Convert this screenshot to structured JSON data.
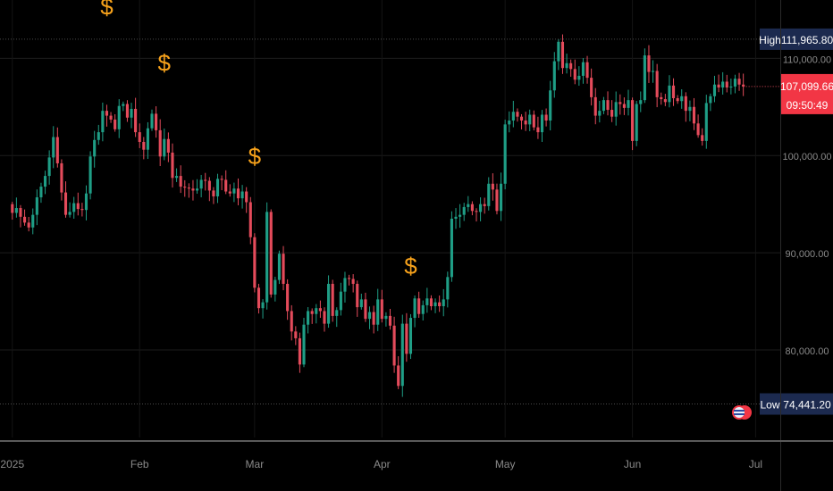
{
  "chart_data": {
    "type": "candlestick",
    "x_axis": {
      "ticks": [
        {
          "label": "2025",
          "day": 0
        },
        {
          "label": "Feb",
          "day": 31
        },
        {
          "label": "Mar",
          "day": 59
        },
        {
          "label": "Apr",
          "day": 90
        },
        {
          "label": "May",
          "day": 120
        },
        {
          "label": "Jun",
          "day": 151
        },
        {
          "label": "Jul",
          "day": 181
        }
      ],
      "range_days": [
        -3,
        187
      ]
    },
    "y_axis": {
      "ticks": [
        "80,000.00",
        "90,000.00",
        "100,000.00",
        "110,000.00"
      ],
      "tick_values": [
        80000,
        90000,
        100000,
        110000
      ],
      "range": [
        71000,
        116000
      ],
      "side": "right"
    },
    "markers": {
      "high": {
        "label": "High",
        "value_text": "111,965.80",
        "value": 111965.8
      },
      "low": {
        "label": "Low",
        "value_text": "74,441.20",
        "value": 74441.2
      },
      "current": {
        "value_text": "107,099.66",
        "countdown": "09:50:49",
        "value": 107099.66
      }
    },
    "dollar_signals": [
      {
        "day": 23,
        "price": 114500
      },
      {
        "day": 37,
        "price": 108700
      },
      {
        "day": 59,
        "price": 99100
      },
      {
        "day": 97,
        "price": 87800
      }
    ],
    "candles_open_close": [
      [
        95000,
        94100
      ],
      [
        94100,
        94600
      ],
      [
        94600,
        93700
      ],
      [
        93700,
        93100
      ],
      [
        93100,
        92600
      ],
      [
        92600,
        93900
      ],
      [
        93900,
        95700
      ],
      [
        95700,
        96800
      ],
      [
        96800,
        97900
      ],
      [
        97900,
        99800
      ],
      [
        99800,
        101900
      ],
      [
        101900,
        99200
      ],
      [
        99200,
        96200
      ],
      [
        96200,
        93900
      ],
      [
        93900,
        94200
      ],
      [
        94200,
        95100
      ],
      [
        95100,
        94500
      ],
      [
        94500,
        94400
      ],
      [
        94400,
        96100
      ],
      [
        96100,
        99900
      ],
      [
        99900,
        101600
      ],
      [
        101600,
        102400
      ],
      [
        102400,
        104600
      ],
      [
        104600,
        104100
      ],
      [
        104100,
        103700
      ],
      [
        103700,
        102700
      ],
      [
        102700,
        105100
      ],
      [
        105100,
        105300
      ],
      [
        105300,
        103900
      ],
      [
        103900,
        104800
      ],
      [
        104800,
        102400
      ],
      [
        102400,
        101400
      ],
      [
        101400,
        100600
      ],
      [
        100600,
        102800
      ],
      [
        102800,
        104300
      ],
      [
        104300,
        102600
      ],
      [
        102600,
        99900
      ],
      [
        99900,
        101700
      ],
      [
        101700,
        100300
      ],
      [
        100300,
        97700
      ],
      [
        97700,
        97900
      ],
      [
        97900,
        96800
      ],
      [
        96800,
        96700
      ],
      [
        96700,
        96600
      ],
      [
        96600,
        96400
      ],
      [
        96400,
        96600
      ],
      [
        96600,
        97500
      ],
      [
        97500,
        97400
      ],
      [
        97400,
        96400
      ],
      [
        96400,
        95800
      ],
      [
        95800,
        97600
      ],
      [
        97600,
        97500
      ],
      [
        97500,
        96300
      ],
      [
        96300,
        96100
      ],
      [
        96100,
        96600
      ],
      [
        96600,
        95600
      ],
      [
        95600,
        96300
      ],
      [
        96300,
        95200
      ],
      [
        95200,
        91600
      ],
      [
        91600,
        86400
      ],
      [
        86400,
        84300
      ],
      [
        84300,
        84900
      ],
      [
        84900,
        94200
      ],
      [
        94200,
        85700
      ],
      [
        85700,
        87200
      ],
      [
        87200,
        89900
      ],
      [
        89900,
        86800
      ],
      [
        86800,
        84000
      ],
      [
        84000,
        81900
      ],
      [
        81900,
        81200
      ],
      [
        81200,
        78500
      ],
      [
        78500,
        82600
      ],
      [
        82600,
        84000
      ],
      [
        84000,
        83700
      ],
      [
        83700,
        84300
      ],
      [
        84300,
        84000
      ],
      [
        84000,
        82700
      ],
      [
        82700,
        86800
      ],
      [
        86800,
        83500
      ],
      [
        83500,
        84100
      ],
      [
        84100,
        86000
      ],
      [
        86000,
        87400
      ],
      [
        87400,
        87300
      ],
      [
        87300,
        86800
      ],
      [
        86800,
        84400
      ],
      [
        84400,
        85200
      ],
      [
        85200,
        83200
      ],
      [
        83200,
        83900
      ],
      [
        83900,
        82600
      ],
      [
        82600,
        85200
      ],
      [
        85200,
        83200
      ],
      [
        83200,
        83500
      ],
      [
        83500,
        82500
      ],
      [
        82500,
        78400
      ],
      [
        78400,
        76300
      ],
      [
        76300,
        82700
      ],
      [
        82700,
        79600
      ],
      [
        79600,
        83300
      ],
      [
        83300,
        85300
      ],
      [
        85300,
        83700
      ],
      [
        83700,
        84600
      ],
      [
        84600,
        85300
      ],
      [
        85300,
        84500
      ],
      [
        84500,
        84900
      ],
      [
        84900,
        84500
      ],
      [
        84500,
        85200
      ],
      [
        85200,
        87500
      ],
      [
        87500,
        93500
      ],
      [
        93500,
        93700
      ],
      [
        93700,
        93900
      ],
      [
        93900,
        94700
      ],
      [
        94700,
        95000
      ],
      [
        95000,
        94300
      ],
      [
        94300,
        94200
      ],
      [
        94200,
        95000
      ],
      [
        95000,
        94800
      ],
      [
        94800,
        97100
      ],
      [
        97100,
        96500
      ],
      [
        96500,
        94300
      ],
      [
        94300,
        97100
      ],
      [
        97100,
        103200
      ],
      [
        103200,
        103600
      ],
      [
        103600,
        104500
      ],
      [
        104500,
        104000
      ],
      [
        104000,
        103600
      ],
      [
        103600,
        103200
      ],
      [
        103200,
        104200
      ],
      [
        104200,
        102900
      ],
      [
        102900,
        102400
      ],
      [
        102400,
        104200
      ],
      [
        104200,
        103600
      ],
      [
        103600,
        106700
      ],
      [
        106700,
        109700
      ],
      [
        109700,
        111700
      ],
      [
        111700,
        109000
      ],
      [
        109000,
        109500
      ],
      [
        109500,
        108900
      ],
      [
        108900,
        107800
      ],
      [
        107800,
        108200
      ],
      [
        108200,
        109600
      ],
      [
        109600,
        108000
      ],
      [
        108000,
        106000
      ],
      [
        106000,
        104100
      ],
      [
        104100,
        104600
      ],
      [
        104600,
        105700
      ],
      [
        105700,
        104700
      ],
      [
        104700,
        104000
      ],
      [
        104000,
        105500
      ],
      [
        105500,
        105300
      ],
      [
        105300,
        104900
      ],
      [
        104900,
        105700
      ],
      [
        105700,
        101500
      ],
      [
        101500,
        105300
      ],
      [
        105300,
        105700
      ],
      [
        105700,
        110300
      ],
      [
        110300,
        108600
      ],
      [
        108600,
        108700
      ],
      [
        108700,
        106000
      ],
      [
        106000,
        105800
      ],
      [
        105800,
        105500
      ],
      [
        105500,
        107200
      ],
      [
        107200,
        105900
      ],
      [
        105900,
        105600
      ],
      [
        105600,
        106100
      ],
      [
        106100,
        104600
      ],
      [
        104600,
        105000
      ],
      [
        105000,
        103300
      ],
      [
        103300,
        102100
      ],
      [
        102100,
        101500
      ],
      [
        101500,
        105400
      ],
      [
        105400,
        106100
      ],
      [
        106100,
        107300
      ],
      [
        107300,
        107000
      ],
      [
        107000,
        107600
      ],
      [
        107600,
        107000
      ],
      [
        107000,
        107100
      ],
      [
        107100,
        107900
      ],
      [
        107900,
        107300
      ],
      [
        107300,
        107100
      ]
    ]
  }
}
